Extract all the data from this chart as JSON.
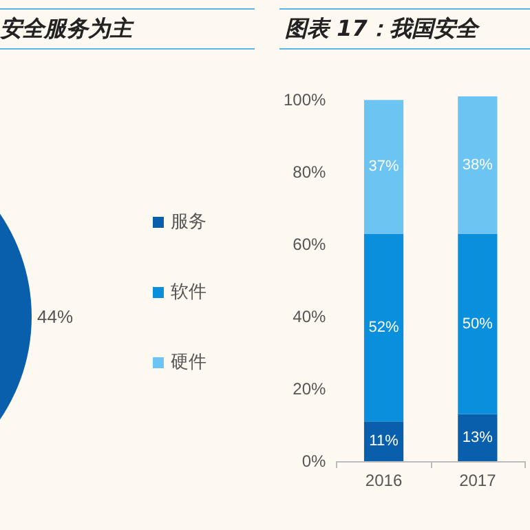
{
  "chart_data": [
    {
      "type": "pie",
      "title": "安全服务为主",
      "categories": [
        "服务",
        "软件",
        "硬件"
      ],
      "values": [
        44,
        null,
        null
      ],
      "value_labels": [
        "44%",
        null,
        null
      ],
      "colors": [
        "#0a5fad",
        "#0a8fdc",
        "#6cc4f2"
      ],
      "legend": "right"
    },
    {
      "type": "bar",
      "title": "图表 17：我国安全",
      "categories": [
        "2016",
        "2017"
      ],
      "stacked": true,
      "ylim": [
        0,
        101
      ],
      "yticks": [
        {
          "value": 0,
          "label": "0%"
        },
        {
          "value": 20,
          "label": "20%"
        },
        {
          "value": 40,
          "label": "40%"
        },
        {
          "value": 60,
          "label": "60%"
        },
        {
          "value": 80,
          "label": "80%"
        },
        {
          "value": 100,
          "label": "100%"
        }
      ],
      "grid": false,
      "legend": false,
      "series": [
        {
          "color": "#0a5fad",
          "values": [
            11,
            13
          ],
          "value_labels": [
            "11%",
            "13%"
          ]
        },
        {
          "color": "#0a8fdc",
          "values": [
            52,
            50
          ],
          "value_labels": [
            "52%",
            "50%"
          ]
        },
        {
          "color": "#6cc4f2",
          "values": [
            37,
            38
          ],
          "value_labels": [
            "37%",
            "38%"
          ]
        }
      ]
    }
  ]
}
